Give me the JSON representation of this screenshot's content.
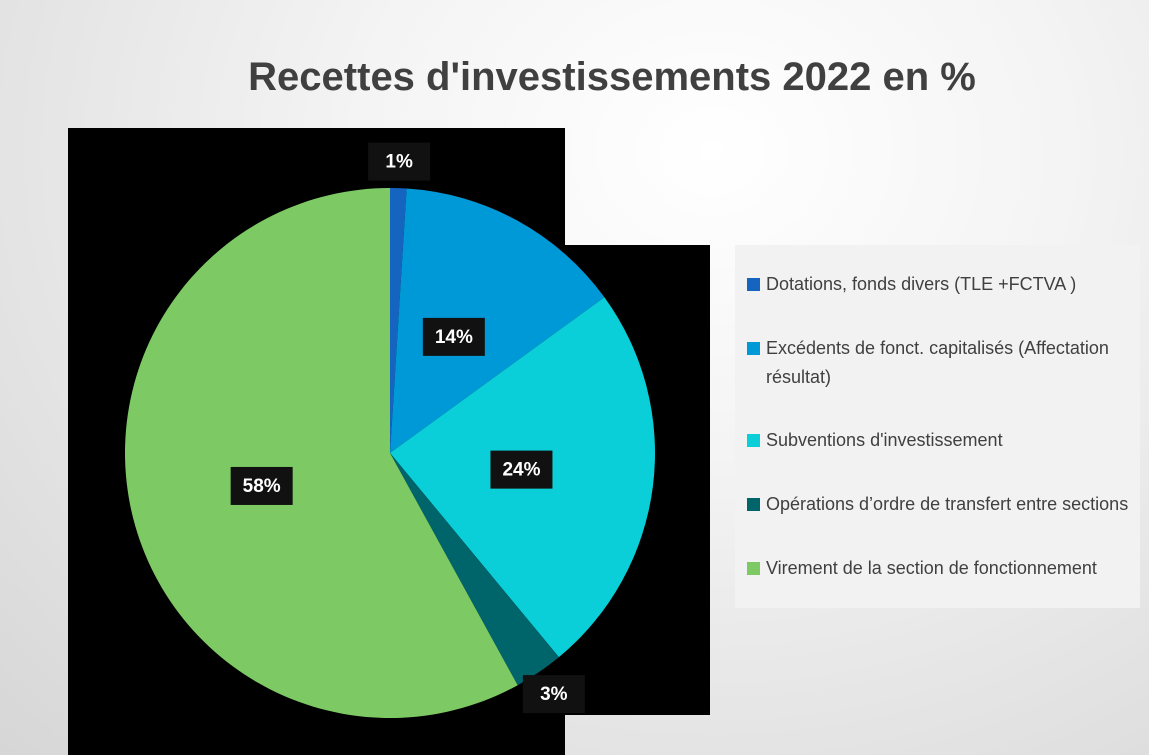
{
  "chart_data": {
    "type": "pie",
    "title": "Recettes d'investissements 2022 en %",
    "categories": [
      "Dotations, fonds divers (TLE +FCTVA )",
      "Excédents de fonct. capitalisés (Affectation résultat)",
      "Subventions d'investissement",
      "Opérations d’ordre de transfert entre sections",
      "Virement de la section de fonctionnement"
    ],
    "values": [
      1,
      14,
      24,
      3,
      58
    ],
    "value_labels": [
      "1%",
      "14%",
      "24%",
      "3%",
      "58%"
    ],
    "colors": [
      "#1565c0",
      "#0099d8",
      "#0bcfd8",
      "#00656b",
      "#7dca65"
    ]
  }
}
